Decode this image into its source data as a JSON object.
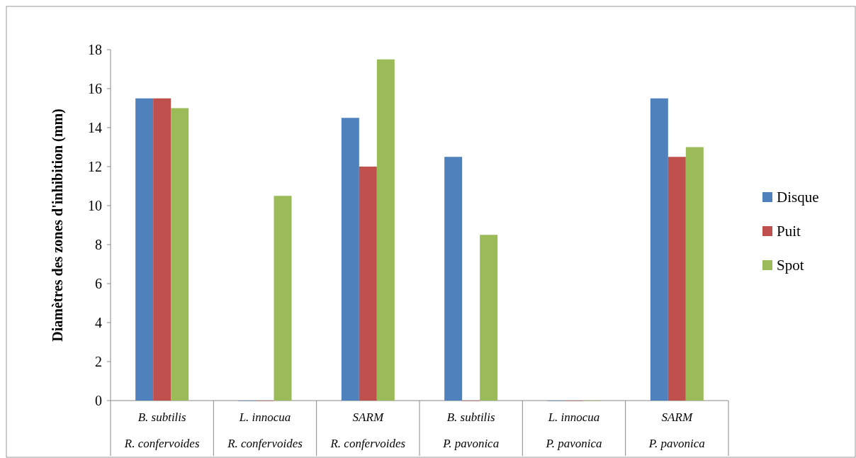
{
  "chart_data": {
    "type": "bar",
    "ylabel": "Diamètres des zones d'inhibition (mm)",
    "categories": [
      "B. subtilis\nR. confervoides",
      "L. innocua\nR. confervoides",
      "SARM\nR. confervoides",
      "B. subtilis\nP. pavonica",
      "L. innocua\nP. pavonica",
      "SARM\nP. pavonica"
    ],
    "series": [
      {
        "name": "Disque",
        "color": "#4f81bd",
        "values": [
          15.5,
          0,
          14.5,
          12.5,
          0,
          15.5
        ]
      },
      {
        "name": "Puit",
        "color": "#c0504d",
        "values": [
          15.5,
          0,
          12,
          0,
          0,
          12.5
        ]
      },
      {
        "name": "Spot",
        "color": "#9bbb59",
        "values": [
          15,
          10.5,
          17.5,
          8.5,
          0,
          13
        ]
      }
    ],
    "ylim": [
      0,
      18
    ],
    "yticks": [
      0,
      2,
      4,
      6,
      8,
      10,
      12,
      14,
      16,
      18
    ],
    "grid": false,
    "legend": "right"
  }
}
